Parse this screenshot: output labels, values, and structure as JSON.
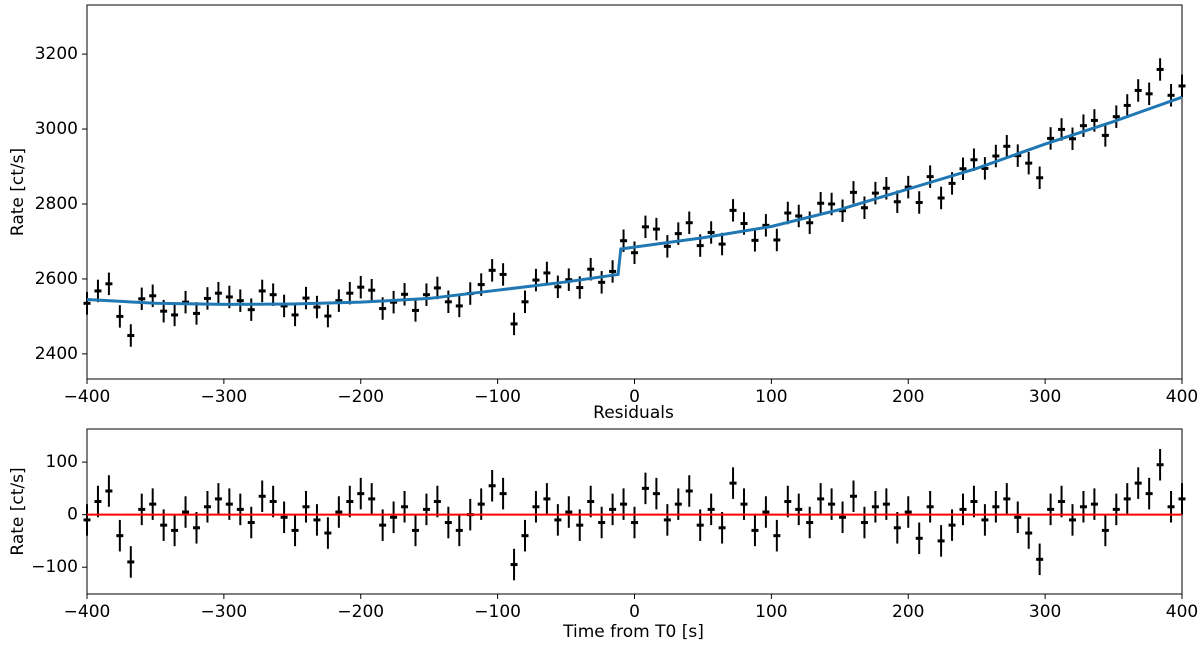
{
  "chart_data": [
    {
      "type": "errorbar",
      "ylabel": "Rate [ct/s]",
      "xlim": [
        -400,
        400
      ],
      "xticks": [
        {
          "value": -400,
          "label": "−400"
        },
        {
          "value": -300,
          "label": "−300"
        },
        {
          "value": -200,
          "label": "−200"
        },
        {
          "value": -100,
          "label": "−100"
        },
        0,
        100,
        200,
        300,
        400
      ],
      "ylim": [
        2333,
        3331
      ],
      "yticks": [
        2400,
        2600,
        2800,
        3000,
        3200
      ],
      "data": {
        "color": "#000000",
        "x": [
          -400,
          -392,
          -384,
          -376,
          -368,
          -360,
          -352,
          -344,
          -336,
          -328,
          -320,
          -312,
          -304,
          -296,
          -288,
          -280,
          -272,
          -264,
          -256,
          -248,
          -240,
          -232,
          -224,
          -216,
          -208,
          -200,
          -192,
          -184,
          -176,
          -168,
          -160,
          -152,
          -144,
          -136,
          -128,
          -120,
          -112,
          -104,
          -96,
          -88,
          -80,
          -72,
          -64,
          -56,
          -48,
          -40,
          -32,
          -24,
          -16,
          -8,
          0,
          8,
          16,
          24,
          32,
          40,
          48,
          56,
          64,
          72,
          80,
          88,
          96,
          104,
          112,
          120,
          128,
          136,
          144,
          152,
          160,
          168,
          176,
          184,
          192,
          200,
          208,
          216,
          224,
          232,
          240,
          248,
          256,
          264,
          272,
          280,
          288,
          296,
          304,
          312,
          320,
          328,
          336,
          344,
          352,
          360,
          368,
          376,
          384,
          392,
          400
        ],
        "values": [
          2535,
          2568,
          2587,
          2500,
          2449,
          2547,
          2555,
          2514,
          2504,
          2538,
          2508,
          2548,
          2562,
          2552,
          2542,
          2518,
          2568,
          2558,
          2528,
          2504,
          2549,
          2525,
          2501,
          2542,
          2562,
          2578,
          2570,
          2521,
          2538,
          2559,
          2516,
          2558,
          2576,
          2539,
          2528,
          2561,
          2585,
          2623,
          2612,
          2480,
          2539,
          2597,
          2616,
          2579,
          2598,
          2577,
          2626,
          2591,
          2620,
          2702,
          2670,
          2739,
          2733,
          2687,
          2721,
          2750,
          2689,
          2724,
          2693,
          2783,
          2748,
          2703,
          2743,
          2704,
          2776,
          2768,
          2750,
          2802,
          2800,
          2782,
          2831,
          2790,
          2829,
          2842,
          2806,
          2845,
          2804,
          2873,
          2816,
          2855,
          2894,
          2918,
          2895,
          2928,
          2954,
          2929,
          2909,
          2870,
          2975,
          2999,
          2974,
          3009,
          3023,
          2983,
          3033,
          3063,
          3103,
          3094,
          3159,
          3090,
          3115
        ],
        "errors": [
          30,
          30,
          30,
          30,
          30,
          30,
          30,
          30,
          30,
          30,
          30,
          30,
          30,
          30,
          30,
          30,
          30,
          30,
          30,
          30,
          30,
          30,
          30,
          30,
          30,
          30,
          30,
          30,
          30,
          30,
          30,
          30,
          30,
          30,
          30,
          30,
          30,
          30,
          30,
          30,
          30,
          30,
          30,
          30,
          30,
          30,
          30,
          30,
          30,
          30,
          30,
          30,
          30,
          30,
          30,
          30,
          30,
          30,
          30,
          30,
          30,
          30,
          30,
          30,
          30,
          30,
          30,
          30,
          30,
          30,
          30,
          30,
          30,
          30,
          30,
          30,
          30,
          30,
          30,
          30,
          30,
          30,
          30,
          30,
          30,
          30,
          30,
          30,
          30,
          30,
          30,
          30,
          30,
          30,
          30,
          30,
          30,
          30,
          30,
          30,
          30
        ]
      },
      "model": {
        "color": "#1f77b4",
        "x": [
          -400,
          -350,
          -300,
          -250,
          -200,
          -150,
          -100,
          -50,
          -12,
          -10,
          0,
          50,
          100,
          150,
          200,
          250,
          300,
          350,
          400
        ],
        "values": [
          2545,
          2535,
          2532,
          2533,
          2538,
          2548,
          2570,
          2592,
          2612,
          2680,
          2685,
          2710,
          2740,
          2785,
          2840,
          2895,
          2960,
          3020,
          3085
        ]
      }
    },
    {
      "type": "errorbar",
      "title": "Residuals",
      "xlabel": "Time from T0 [s]",
      "ylabel": "Rate [ct/s]",
      "xlim": [
        -400,
        400
      ],
      "xticks": [
        {
          "value": -400,
          "label": "−400"
        },
        {
          "value": -300,
          "label": "−300"
        },
        {
          "value": -200,
          "label": "−200"
        },
        {
          "value": -100,
          "label": "−100"
        },
        0,
        100,
        200,
        300,
        400
      ],
      "ylim": [
        -151,
        163
      ],
      "yticks": [
        {
          "value": -100,
          "label": "−100"
        },
        0,
        100
      ],
      "data": {
        "color": "#000000",
        "x": [
          -400,
          -392,
          -384,
          -376,
          -368,
          -360,
          -352,
          -344,
          -336,
          -328,
          -320,
          -312,
          -304,
          -296,
          -288,
          -280,
          -272,
          -264,
          -256,
          -248,
          -240,
          -232,
          -224,
          -216,
          -208,
          -200,
          -192,
          -184,
          -176,
          -168,
          -160,
          -152,
          -144,
          -136,
          -128,
          -120,
          -112,
          -104,
          -96,
          -88,
          -80,
          -72,
          -64,
          -56,
          -48,
          -40,
          -32,
          -24,
          -16,
          -8,
          0,
          8,
          16,
          24,
          32,
          40,
          48,
          56,
          64,
          72,
          80,
          88,
          96,
          104,
          112,
          120,
          128,
          136,
          144,
          152,
          160,
          168,
          176,
          184,
          192,
          200,
          208,
          216,
          224,
          232,
          240,
          248,
          256,
          264,
          272,
          280,
          288,
          296,
          304,
          312,
          320,
          328,
          336,
          344,
          352,
          360,
          368,
          376,
          384,
          392,
          400
        ],
        "values": [
          -10,
          25,
          45,
          -40,
          -90,
          10,
          20,
          -20,
          -30,
          5,
          -25,
          15,
          30,
          20,
          10,
          -15,
          35,
          25,
          -5,
          -30,
          15,
          -10,
          -35,
          5,
          25,
          40,
          30,
          -20,
          -5,
          15,
          -30,
          10,
          25,
          -15,
          -30,
          0,
          20,
          55,
          40,
          -95,
          -40,
          15,
          30,
          -10,
          5,
          -20,
          25,
          -15,
          10,
          20,
          -15,
          50,
          40,
          -10,
          20,
          45,
          -20,
          10,
          -25,
          60,
          20,
          -30,
          5,
          -40,
          25,
          10,
          -15,
          30,
          20,
          -5,
          35,
          -15,
          15,
          20,
          -25,
          5,
          -45,
          15,
          -50,
          -20,
          10,
          25,
          -10,
          15,
          30,
          -5,
          -35,
          -85,
          10,
          25,
          -10,
          15,
          20,
          -30,
          10,
          30,
          60,
          40,
          95,
          15,
          30
        ],
        "errors": [
          30,
          30,
          30,
          30,
          30,
          30,
          30,
          30,
          30,
          30,
          30,
          30,
          30,
          30,
          30,
          30,
          30,
          30,
          30,
          30,
          30,
          30,
          30,
          30,
          30,
          30,
          30,
          30,
          30,
          30,
          30,
          30,
          30,
          30,
          30,
          30,
          30,
          30,
          30,
          30,
          30,
          30,
          30,
          30,
          30,
          30,
          30,
          30,
          30,
          30,
          30,
          30,
          30,
          30,
          30,
          30,
          30,
          30,
          30,
          30,
          30,
          30,
          30,
          30,
          30,
          30,
          30,
          30,
          30,
          30,
          30,
          30,
          30,
          30,
          30,
          30,
          30,
          30,
          30,
          30,
          30,
          30,
          30,
          30,
          30,
          30,
          30,
          30,
          30,
          30,
          30,
          30,
          30,
          30,
          30,
          30,
          30,
          30,
          30,
          30,
          30
        ]
      },
      "model": {
        "color": "#ff0000",
        "x": [
          -400,
          400
        ],
        "values": [
          0,
          0
        ]
      }
    }
  ]
}
